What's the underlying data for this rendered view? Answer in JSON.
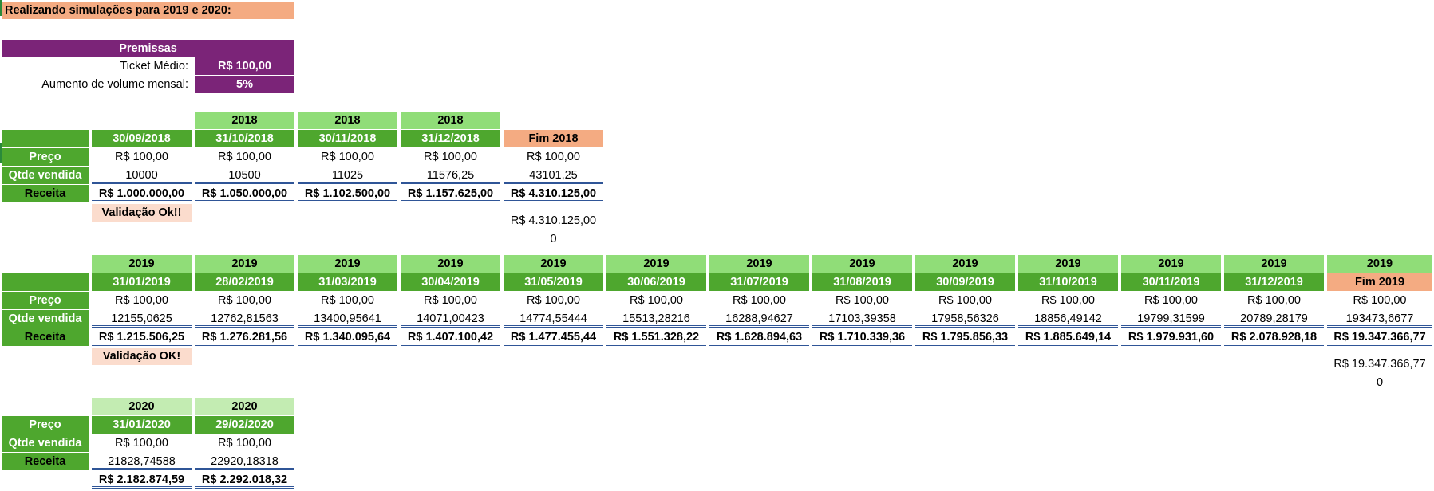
{
  "title": "Realizando simulações para 2019 e 2020:",
  "premissas": {
    "header": "Premissas",
    "ticket_label": "Ticket Médio:",
    "ticket_value": "R$ 100,00",
    "aumento_label": "Aumento de volume mensal:",
    "aumento_value": "5%"
  },
  "row_labels": {
    "preco": "Preço",
    "qtde": "Qtde vendida",
    "receita": "Receita"
  },
  "table2018": {
    "years": [
      "2018",
      "2018",
      "2018"
    ],
    "dates": [
      "30/09/2018",
      "31/10/2018",
      "30/11/2018",
      "31/12/2018"
    ],
    "fim_label": "Fim 2018",
    "preco": [
      "R$ 100,00",
      "R$ 100,00",
      "R$ 100,00",
      "R$ 100,00",
      "R$ 100,00"
    ],
    "qtde": [
      "10000",
      "10500",
      "11025",
      "11576,25",
      "43101,25"
    ],
    "receita": [
      "R$ 1.000.000,00",
      "R$ 1.050.000,00",
      "R$ 1.102.500,00",
      "R$ 1.157.625,00",
      "R$ 4.310.125,00"
    ],
    "validacao": "Validação Ok!!",
    "check_total": "R$ 4.310.125,00",
    "check_diff": "0"
  },
  "table2019": {
    "years": [
      "2019",
      "2019",
      "2019",
      "2019",
      "2019",
      "2019",
      "2019",
      "2019",
      "2019",
      "2019",
      "2019",
      "2019",
      "2019"
    ],
    "dates": [
      "31/01/2019",
      "28/02/2019",
      "31/03/2019",
      "30/04/2019",
      "31/05/2019",
      "30/06/2019",
      "31/07/2019",
      "31/08/2019",
      "30/09/2019",
      "31/10/2019",
      "30/11/2019",
      "31/12/2019"
    ],
    "fim_label": "Fim 2019",
    "preco": [
      "R$ 100,00",
      "R$ 100,00",
      "R$ 100,00",
      "R$ 100,00",
      "R$ 100,00",
      "R$ 100,00",
      "R$ 100,00",
      "R$ 100,00",
      "R$ 100,00",
      "R$ 100,00",
      "R$ 100,00",
      "R$ 100,00",
      "R$ 100,00"
    ],
    "qtde": [
      "12155,0625",
      "12762,81563",
      "13400,95641",
      "14071,00423",
      "14774,55444",
      "15513,28216",
      "16288,94627",
      "17103,39358",
      "17958,56326",
      "18856,49142",
      "19799,31599",
      "20789,28179",
      "193473,6677"
    ],
    "receita": [
      "R$ 1.215.506,25",
      "R$ 1.276.281,56",
      "R$ 1.340.095,64",
      "R$ 1.407.100,42",
      "R$ 1.477.455,44",
      "R$ 1.551.328,22",
      "R$ 1.628.894,63",
      "R$ 1.710.339,36",
      "R$ 1.795.856,33",
      "R$ 1.885.649,14",
      "R$ 1.979.931,60",
      "R$ 2.078.928,18",
      "R$ 19.347.366,77"
    ],
    "validacao": "Validação OK!",
    "check_total": "R$ 19.347.366,77",
    "check_diff": "0"
  },
  "table2020": {
    "years": [
      "2020",
      "2020"
    ],
    "dates": [
      "31/01/2020",
      "29/02/2020"
    ],
    "preco": [
      "R$ 100,00",
      "R$ 100,00"
    ],
    "qtde": [
      "21828,74588",
      "22920,18318"
    ],
    "receita": [
      "R$ 2.182.874,59",
      "R$ 2.292.018,32"
    ]
  }
}
